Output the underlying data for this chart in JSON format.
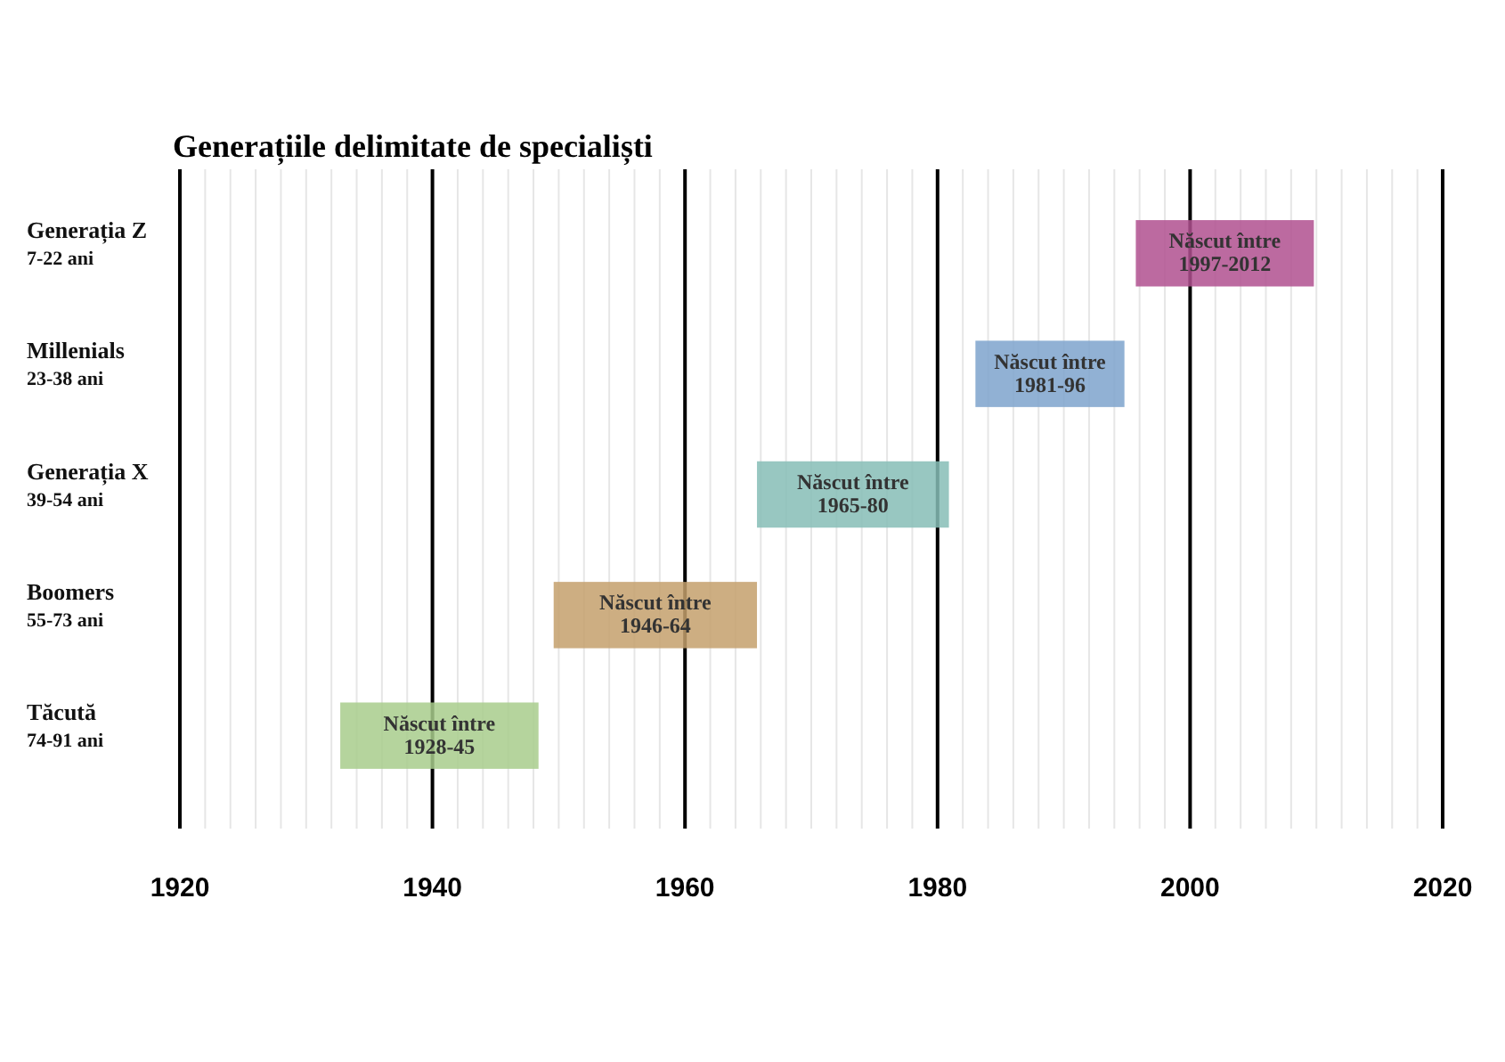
{
  "chart_data": {
    "type": "bar",
    "orientation": "horizontal",
    "title": "Generațiile delimitate de specialiști",
    "categories": [
      "Generația Z\n7-22 ani",
      "Millenials\n23-38 ani",
      "Generația X\n39-54 ani",
      "Boomers\n55-73 ani",
      "Tăcută\n74-91 ani"
    ],
    "base": [
      1995.7,
      1983,
      1965.7,
      1949.6,
      1932.7
    ],
    "values": [
      14.1,
      11.8,
      15.2,
      16.1,
      15.7
    ],
    "colors": [
      "#b0508f",
      "#7ea3cc",
      "#86bdb6",
      "#c4a06c",
      "#a8cc8c"
    ],
    "value_labels": [
      "Născut între\n1997-2012",
      "Născut între\n1981-96",
      "Născut între\n1965-80",
      "Născut între\n1946-64",
      "Născut între\n1928-45"
    ],
    "xlim": [
      1920,
      2020
    ],
    "xticks": [
      1920,
      {
        "value": 1922,
        "label": null
      },
      {
        "value": 1924,
        "label": null
      },
      {
        "value": 1926,
        "label": null
      },
      {
        "value": 1928,
        "label": null
      },
      {
        "value": 1930,
        "label": null
      },
      {
        "value": 1932,
        "label": null
      },
      {
        "value": 1934,
        "label": null
      },
      {
        "value": 1936,
        "label": null
      },
      {
        "value": 1938,
        "label": null
      },
      1940,
      {
        "value": 1942,
        "label": null
      },
      {
        "value": 1944,
        "label": null
      },
      {
        "value": 1946,
        "label": null
      },
      {
        "value": 1948,
        "label": null
      },
      {
        "value": 1950,
        "label": null
      },
      {
        "value": 1952,
        "label": null
      },
      {
        "value": 1954,
        "label": null
      },
      {
        "value": 1956,
        "label": null
      },
      {
        "value": 1958,
        "label": null
      },
      1960,
      {
        "value": 1962,
        "label": null
      },
      {
        "value": 1964,
        "label": null
      },
      {
        "value": 1966,
        "label": null
      },
      {
        "value": 1968,
        "label": null
      },
      {
        "value": 1970,
        "label": null
      },
      {
        "value": 1972,
        "label": null
      },
      {
        "value": 1974,
        "label": null
      },
      {
        "value": 1976,
        "label": null
      },
      {
        "value": 1978,
        "label": null
      },
      1980,
      {
        "value": 1982,
        "label": null
      },
      {
        "value": 1984,
        "label": null
      },
      {
        "value": 1986,
        "label": null
      },
      {
        "value": 1988,
        "label": null
      },
      {
        "value": 1990,
        "label": null
      },
      {
        "value": 1992,
        "label": null
      },
      {
        "value": 1994,
        "label": null
      },
      {
        "value": 1996,
        "label": null
      },
      {
        "value": 1998,
        "label": null
      },
      2000,
      {
        "value": 2002,
        "label": null
      },
      {
        "value": 2004,
        "label": null
      },
      {
        "value": 2006,
        "label": null
      },
      {
        "value": 2008,
        "label": null
      },
      {
        "value": 2010,
        "label": null
      },
      {
        "value": 2012,
        "label": null
      },
      {
        "value": 2014,
        "label": null
      },
      {
        "value": 2016,
        "label": null
      },
      {
        "value": 2018,
        "label": null
      },
      2020
    ],
    "grid": "x"
  }
}
